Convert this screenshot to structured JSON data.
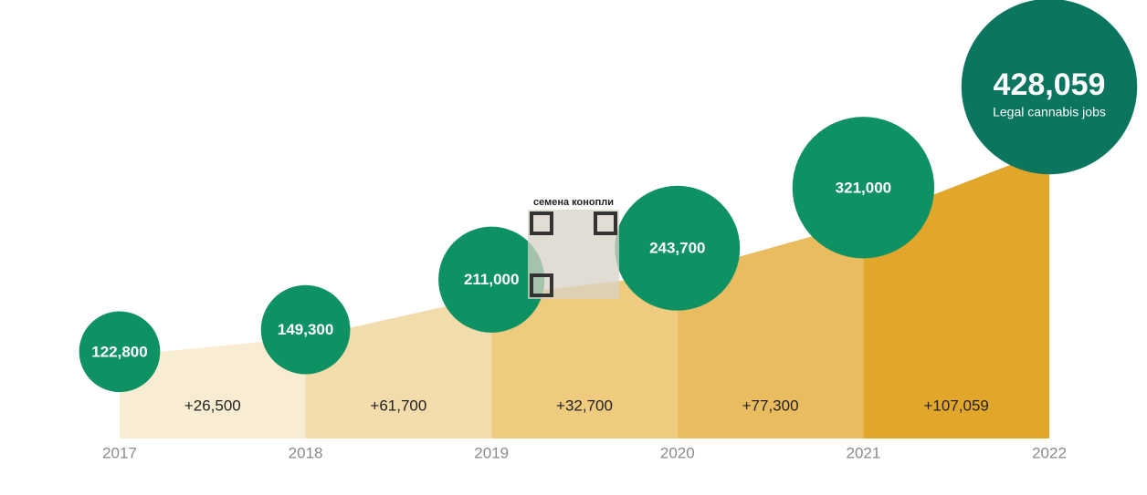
{
  "chart_data": {
    "type": "bubble-area",
    "categories": [
      "2017",
      "2018",
      "2019",
      "2020",
      "2021",
      "2022"
    ],
    "values": [
      122800,
      149300,
      211000,
      243700,
      321000,
      428059
    ],
    "value_labels": [
      "122,800",
      "149,300",
      "211,000",
      "243,700",
      "321,000",
      "428,059"
    ],
    "increment_labels": [
      "+26,500",
      "+61,700",
      "+32,700",
      "+77,300",
      "+107,059"
    ],
    "highlight_caption": "Legal cannabis jobs",
    "bubble_color": "#0f9263",
    "highlight_color": "#0b7560",
    "segment_colors": [
      "#f8ecd2",
      "#f3dcab",
      "#eecb7e",
      "#e9bd5f",
      "#e2a72a"
    ],
    "watermark": "семена конопли"
  }
}
